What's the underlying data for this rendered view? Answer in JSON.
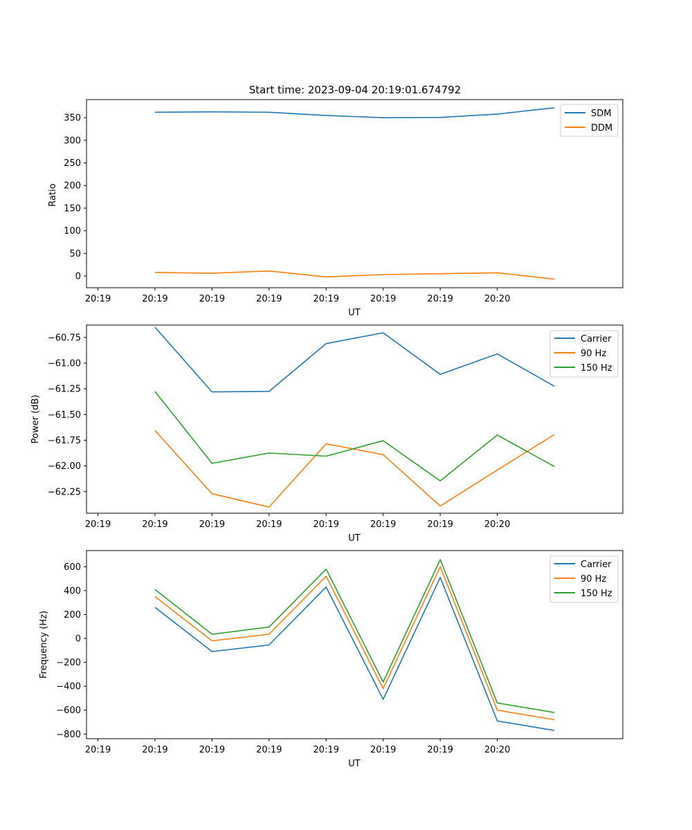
{
  "colors": {
    "blue": "#1f77b4",
    "orange": "#ff7f0e",
    "green": "#2ca02c",
    "axis": "#000000",
    "background": "#ffffff"
  },
  "chart_data": [
    {
      "type": "line",
      "title": "Start time: 2023-09-04 20:19:01.674792",
      "xlabel": "UT",
      "ylabel": "Ratio",
      "x_ticks": [
        "20:19",
        "20:19",
        "20:19",
        "20:19",
        "20:19",
        "20:19",
        "20:19",
        "20:20"
      ],
      "x": [
        0.5,
        1,
        1.5,
        2,
        2.5,
        3,
        3.5,
        4
      ],
      "xlim": [
        -0.1,
        4.6
      ],
      "ylim": [
        -26,
        390
      ],
      "y_ticks": [
        0,
        50,
        100,
        150,
        200,
        250,
        300,
        350
      ],
      "legend_position": "top-right",
      "series": [
        {
          "name": "SDM",
          "color": "#1f77b4",
          "values": [
            362,
            363,
            362,
            355,
            350,
            350.5,
            358,
            372
          ]
        },
        {
          "name": "DDM",
          "color": "#ff7f0e",
          "values": [
            8,
            6,
            11,
            -2,
            3,
            5,
            7,
            -7
          ]
        }
      ]
    },
    {
      "type": "line",
      "title": "",
      "xlabel": "UT",
      "ylabel": "Power (dB)",
      "x_ticks": [
        "20:19",
        "20:19",
        "20:19",
        "20:19",
        "20:19",
        "20:19",
        "20:19",
        "20:20"
      ],
      "x": [
        0.5,
        1,
        1.5,
        2,
        2.5,
        3,
        3.5,
        4
      ],
      "xlim": [
        -0.1,
        4.6
      ],
      "ylim": [
        -62.46,
        -60.63
      ],
      "y_ticks": [
        -62.25,
        -62.0,
        -61.75,
        -61.5,
        -61.25,
        -61.0,
        -60.75
      ],
      "y_tick_labels": [
        "−62.25",
        "−62.00",
        "−61.75",
        "−61.50",
        "−61.25",
        "−61.00",
        "−60.75"
      ],
      "legend_position": "top-right",
      "series": [
        {
          "name": "Carrier",
          "color": "#1f77b4",
          "values": [
            -60.65,
            -61.28,
            -61.275,
            -60.81,
            -60.705,
            -61.11,
            -60.91,
            -61.225
          ]
        },
        {
          "name": "90 Hz",
          "color": "#ff7f0e",
          "values": [
            -61.655,
            -62.27,
            -62.4,
            -61.785,
            -61.89,
            -62.39,
            -62.04,
            -61.695
          ]
        },
        {
          "name": "150 Hz",
          "color": "#2ca02c",
          "values": [
            -61.275,
            -61.975,
            -61.875,
            -61.905,
            -61.755,
            -62.145,
            -61.7,
            -62.005
          ]
        }
      ]
    },
    {
      "type": "line",
      "title": "",
      "xlabel": "UT",
      "ylabel": "Frequency (Hz)",
      "x_ticks": [
        "20:19",
        "20:19",
        "20:19",
        "20:19",
        "20:19",
        "20:19",
        "20:19",
        "20:20"
      ],
      "x": [
        0.5,
        1,
        1.5,
        2,
        2.5,
        3,
        3.5,
        4
      ],
      "xlim": [
        -0.1,
        4.6
      ],
      "ylim": [
        -839,
        735
      ],
      "y_ticks": [
        -800,
        -600,
        -400,
        -200,
        0,
        200,
        400,
        600
      ],
      "y_tick_labels": [
        "−800",
        "−600",
        "−400",
        "−200",
        "0",
        "200",
        "400",
        "600"
      ],
      "legend_position": "top-right",
      "series": [
        {
          "name": "Carrier",
          "color": "#1f77b4",
          "values": [
            260,
            -110,
            -55,
            430,
            -510,
            510,
            -690,
            -770
          ]
        },
        {
          "name": "90 Hz",
          "color": "#ff7f0e",
          "values": [
            350,
            -20,
            35,
            520,
            -420,
            600,
            -600,
            -680
          ]
        },
        {
          "name": "150 Hz",
          "color": "#2ca02c",
          "values": [
            410,
            35,
            95,
            580,
            -365,
            660,
            -540,
            -620
          ]
        }
      ]
    }
  ]
}
